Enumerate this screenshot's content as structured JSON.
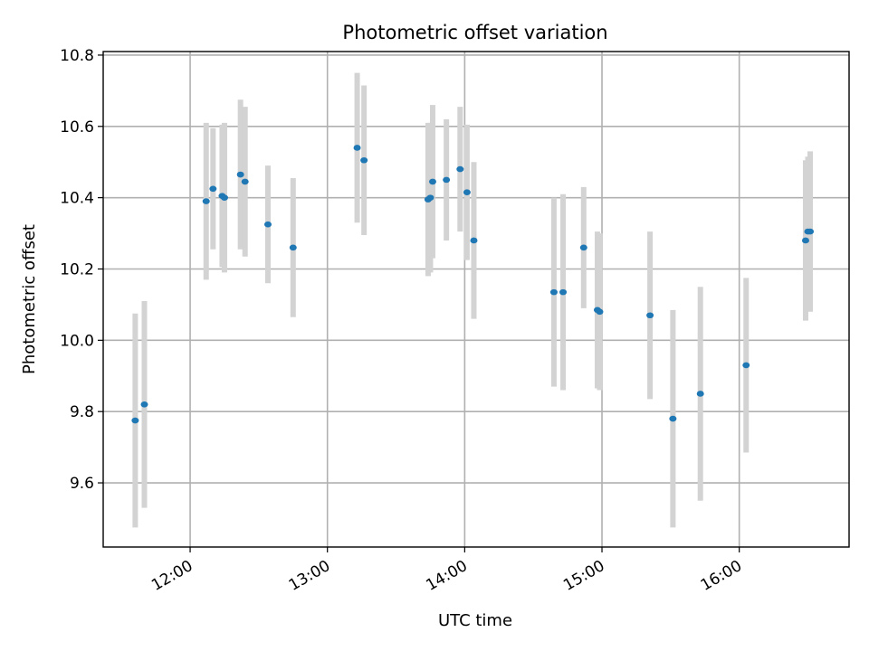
{
  "chart_data": {
    "type": "scatter",
    "title": "Photometric offset variation",
    "xlabel": "UTC time",
    "ylabel": "Photometric offset",
    "x_ticks": [
      "12:00",
      "13:00",
      "14:00",
      "15:00",
      "16:00"
    ],
    "x_tick_values": [
      "12:00",
      "13:00",
      "14:00",
      "15:00",
      "16:00"
    ],
    "y_ticks": [
      "9.6",
      "9.8",
      "10.0",
      "10.2",
      "10.4",
      "10.6",
      "10.8"
    ],
    "y_tick_values": [
      9.6,
      9.8,
      10.0,
      10.2,
      10.4,
      10.6,
      10.8
    ],
    "xlim": [
      "11:22",
      "16:48"
    ],
    "ylim": [
      9.42,
      10.81
    ],
    "grid": true,
    "marker_color": "#1f77b4",
    "errorbar_color": "#d3d3d3",
    "points": [
      {
        "t": "11:36",
        "y": 9.775,
        "err": 0.3
      },
      {
        "t": "11:40",
        "y": 9.82,
        "err": 0.29
      },
      {
        "t": "12:07",
        "y": 10.39,
        "err": 0.22
      },
      {
        "t": "12:10",
        "y": 10.425,
        "err": 0.17
      },
      {
        "t": "12:14",
        "y": 10.405,
        "err": 0.2
      },
      {
        "t": "12:15",
        "y": 10.4,
        "err": 0.21
      },
      {
        "t": "12:22",
        "y": 10.465,
        "err": 0.21
      },
      {
        "t": "12:24",
        "y": 10.445,
        "err": 0.21
      },
      {
        "t": "12:34",
        "y": 10.325,
        "err": 0.165
      },
      {
        "t": "12:45",
        "y": 10.26,
        "err": 0.195
      },
      {
        "t": "13:13",
        "y": 10.54,
        "err": 0.21
      },
      {
        "t": "13:16",
        "y": 10.505,
        "err": 0.21
      },
      {
        "t": "13:44",
        "y": 10.395,
        "err": 0.215
      },
      {
        "t": "13:45",
        "y": 10.4,
        "err": 0.21
      },
      {
        "t": "13:46",
        "y": 10.445,
        "err": 0.215
      },
      {
        "t": "13:52",
        "y": 10.45,
        "err": 0.17
      },
      {
        "t": "13:58",
        "y": 10.48,
        "err": 0.175
      },
      {
        "t": "14:01",
        "y": 10.415,
        "err": 0.19
      },
      {
        "t": "14:04",
        "y": 10.28,
        "err": 0.22
      },
      {
        "t": "14:39",
        "y": 10.135,
        "err": 0.265
      },
      {
        "t": "14:43",
        "y": 10.135,
        "err": 0.275
      },
      {
        "t": "14:52",
        "y": 10.26,
        "err": 0.17
      },
      {
        "t": "14:58",
        "y": 10.085,
        "err": 0.22
      },
      {
        "t": "14:59",
        "y": 10.08,
        "err": 0.22
      },
      {
        "t": "15:21",
        "y": 10.07,
        "err": 0.235
      },
      {
        "t": "15:31",
        "y": 9.78,
        "err": 0.305
      },
      {
        "t": "15:43",
        "y": 9.85,
        "err": 0.3
      },
      {
        "t": "16:03",
        "y": 9.93,
        "err": 0.245
      },
      {
        "t": "16:29",
        "y": 10.28,
        "err": 0.225
      },
      {
        "t": "16:30",
        "y": 10.305,
        "err": 0.21
      },
      {
        "t": "16:31",
        "y": 10.305,
        "err": 0.225
      }
    ]
  }
}
